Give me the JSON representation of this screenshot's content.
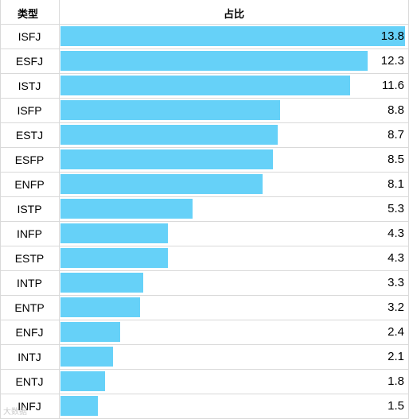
{
  "table": {
    "header_type": "类型",
    "header_value": "占比"
  },
  "chart_data": {
    "type": "bar",
    "orientation": "horizontal",
    "categories": [
      "ISFJ",
      "ESFJ",
      "ISTJ",
      "ISFP",
      "ESTJ",
      "ESFP",
      "ENFP",
      "ISTP",
      "INFP",
      "ESTP",
      "INTP",
      "ENTP",
      "ENFJ",
      "INTJ",
      "ENTJ",
      "INFJ"
    ],
    "values": [
      13.8,
      12.3,
      11.6,
      8.8,
      8.7,
      8.5,
      8.1,
      5.3,
      4.3,
      4.3,
      3.3,
      3.2,
      2.4,
      2.1,
      1.8,
      1.5
    ],
    "xlim": [
      0,
      13.8
    ],
    "bar_color": "#66d1f8"
  },
  "watermark": "大数据"
}
